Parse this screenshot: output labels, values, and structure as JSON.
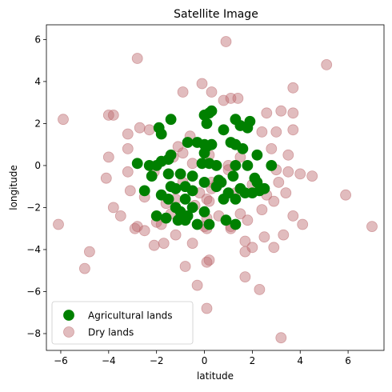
{
  "chart_data": {
    "type": "scatter",
    "title": "Satellite Image",
    "xlabel": "latitude",
    "ylabel": "longitude",
    "xlim": [
      -6.6,
      7.5
    ],
    "ylim": [
      -8.8,
      6.7
    ],
    "xticks": [
      -6,
      -4,
      -2,
      0,
      2,
      4,
      6
    ],
    "yticks": [
      -8,
      -6,
      -4,
      -2,
      0,
      2,
      4,
      6
    ],
    "legend_position": "lower-left",
    "series": [
      {
        "name": "Agricultural lands",
        "color": "#008000",
        "alpha": 1.0,
        "points": [
          [
            -1.4,
            2.2
          ],
          [
            -1.9,
            1.8
          ],
          [
            -1.8,
            1.5
          ],
          [
            0.0,
            2.4
          ],
          [
            0.3,
            2.6
          ],
          [
            0.2,
            2.5
          ],
          [
            1.3,
            2.2
          ],
          [
            1.5,
            1.9
          ],
          [
            1.9,
            2.1
          ],
          [
            1.8,
            1.8
          ],
          [
            0.8,
            1.7
          ],
          [
            0.1,
            2.0
          ],
          [
            -0.3,
            1.1
          ],
          [
            -0.7,
            1.1
          ],
          [
            0.3,
            1.0
          ],
          [
            0.0,
            1.0
          ],
          [
            0.1,
            0.9
          ],
          [
            1.3,
            1.0
          ],
          [
            1.1,
            1.1
          ],
          [
            1.6,
            0.8
          ],
          [
            2.2,
            0.5
          ],
          [
            -1.4,
            0.5
          ],
          [
            -1.5,
            0.3
          ],
          [
            0.0,
            0.6
          ],
          [
            -2.8,
            0.1
          ],
          [
            -2.3,
            0.0
          ],
          [
            -2.0,
            0.0
          ],
          [
            -1.8,
            0.2
          ],
          [
            -0.1,
            0.1
          ],
          [
            0.2,
            0.1
          ],
          [
            0.5,
            0.0
          ],
          [
            1.3,
            0.0
          ],
          [
            1.8,
            0.0
          ],
          [
            2.8,
            0.0
          ],
          [
            -2.2,
            -0.5
          ],
          [
            -1.5,
            -0.4
          ],
          [
            -1.0,
            -0.4
          ],
          [
            -0.5,
            -0.5
          ],
          [
            0.0,
            -0.8
          ],
          [
            0.6,
            -0.7
          ],
          [
            1.2,
            -0.5
          ],
          [
            2.1,
            -0.6
          ],
          [
            -1.8,
            -1.4
          ],
          [
            -1.4,
            -1.0
          ],
          [
            -1.2,
            -1.1
          ],
          [
            -0.8,
            -1.0
          ],
          [
            -0.5,
            -1.2
          ],
          [
            0.7,
            -0.8
          ],
          [
            1.0,
            -1.3
          ],
          [
            1.5,
            -1.1
          ],
          [
            2.2,
            -0.8
          ],
          [
            2.5,
            -1.1
          ],
          [
            -1.5,
            -1.6
          ],
          [
            -1.2,
            -2.0
          ],
          [
            -0.8,
            -1.6
          ],
          [
            -0.5,
            -2.0
          ],
          [
            0.8,
            -1.6
          ],
          [
            1.3,
            -1.6
          ],
          [
            2.0,
            -1.3
          ],
          [
            2.3,
            -1.2
          ],
          [
            -2.0,
            -2.4
          ],
          [
            -1.6,
            -2.5
          ],
          [
            -1.1,
            -2.6
          ],
          [
            -0.8,
            -2.6
          ],
          [
            0.0,
            -2.2
          ],
          [
            0.2,
            -2.8
          ],
          [
            0.9,
            -2.6
          ],
          [
            1.3,
            -2.8
          ],
          [
            -0.3,
            -2.8
          ],
          [
            -0.7,
            -2.4
          ],
          [
            -1.0,
            -2.2
          ],
          [
            0.5,
            -1.0
          ],
          [
            -2.5,
            -1.2
          ],
          [
            1.7,
            -1.3
          ]
        ]
      },
      {
        "name": "Dry lands",
        "color": "#bc6a6e",
        "alpha": 0.45,
        "points": [
          [
            -2.8,
            5.1
          ],
          [
            0.9,
            5.9
          ],
          [
            5.1,
            4.8
          ],
          [
            3.7,
            3.7
          ],
          [
            -0.9,
            3.5
          ],
          [
            -0.1,
            3.9
          ],
          [
            0.3,
            3.5
          ],
          [
            0.8,
            3.1
          ],
          [
            1.1,
            3.2
          ],
          [
            1.4,
            3.2
          ],
          [
            2.6,
            2.5
          ],
          [
            3.2,
            2.6
          ],
          [
            3.7,
            2.5
          ],
          [
            -5.9,
            2.2
          ],
          [
            -4.0,
            2.4
          ],
          [
            -3.8,
            2.4
          ],
          [
            -3.2,
            1.5
          ],
          [
            -2.7,
            1.8
          ],
          [
            -2.3,
            1.7
          ],
          [
            -0.6,
            1.4
          ],
          [
            2.4,
            1.6
          ],
          [
            3.0,
            1.6
          ],
          [
            3.7,
            1.7
          ],
          [
            -3.2,
            0.8
          ],
          [
            -1.1,
            0.9
          ],
          [
            2.8,
            0.8
          ],
          [
            -4.0,
            0.4
          ],
          [
            -1.3,
            0.4
          ],
          [
            -0.9,
            0.6
          ],
          [
            0.2,
            0.5
          ],
          [
            3.5,
            0.5
          ],
          [
            -0.5,
            0.1
          ],
          [
            1.0,
            0.0
          ],
          [
            1.5,
            0.4
          ],
          [
            -3.2,
            -0.3
          ],
          [
            -2.1,
            -0.3
          ],
          [
            1.0,
            -0.2
          ],
          [
            3.0,
            -0.2
          ],
          [
            3.5,
            -0.3
          ],
          [
            4.0,
            -0.4
          ],
          [
            4.5,
            -0.5
          ],
          [
            -4.1,
            -0.6
          ],
          [
            -0.9,
            -0.8
          ],
          [
            0.3,
            -0.8
          ],
          [
            2.0,
            -0.9
          ],
          [
            3.1,
            -0.8
          ],
          [
            -3.1,
            -1.2
          ],
          [
            -2.5,
            -1.5
          ],
          [
            -0.2,
            -1.3
          ],
          [
            0.1,
            -1.6
          ],
          [
            0.3,
            -1.1
          ],
          [
            1.3,
            -1.3
          ],
          [
            2.6,
            -1.4
          ],
          [
            3.4,
            -1.3
          ],
          [
            5.9,
            -1.4
          ],
          [
            -3.8,
            -2.0
          ],
          [
            -1.6,
            -1.8
          ],
          [
            -1.2,
            -1.6
          ],
          [
            -0.4,
            -1.9
          ],
          [
            0.2,
            -1.7
          ],
          [
            2.9,
            -1.7
          ],
          [
            -3.5,
            -2.4
          ],
          [
            -2.0,
            -2.7
          ],
          [
            -1.4,
            -2.3
          ],
          [
            0.1,
            -2.5
          ],
          [
            0.6,
            -2.4
          ],
          [
            1.5,
            -2.3
          ],
          [
            2.4,
            -2.1
          ],
          [
            4.1,
            -2.8
          ],
          [
            -2.8,
            -2.9
          ],
          [
            -2.5,
            -3.1
          ],
          [
            -1.8,
            -2.8
          ],
          [
            0.0,
            -2.9
          ],
          [
            1.1,
            -2.9
          ],
          [
            1.8,
            -2.6
          ],
          [
            3.7,
            -2.4
          ],
          [
            -2.9,
            -3.0
          ],
          [
            -2.1,
            -3.8
          ],
          [
            -1.7,
            -3.7
          ],
          [
            -1.2,
            -3.3
          ],
          [
            0.1,
            -3.0
          ],
          [
            1.1,
            -3.0
          ],
          [
            2.0,
            -3.9
          ],
          [
            2.5,
            -3.4
          ],
          [
            3.3,
            -3.3
          ],
          [
            2.9,
            -3.9
          ],
          [
            7.0,
            -2.9
          ],
          [
            -6.1,
            -2.8
          ],
          [
            -4.8,
            -4.1
          ],
          [
            -5.0,
            -4.9
          ],
          [
            -0.5,
            -3.7
          ],
          [
            0.2,
            -4.5
          ],
          [
            0.1,
            -4.6
          ],
          [
            -0.8,
            -4.8
          ],
          [
            1.7,
            -3.6
          ],
          [
            1.7,
            -4.1
          ],
          [
            -0.3,
            -5.7
          ],
          [
            1.7,
            -5.3
          ],
          [
            2.3,
            -5.9
          ],
          [
            0.1,
            -6.8
          ],
          [
            3.2,
            -8.2
          ],
          [
            0.5,
            -0.9
          ]
        ]
      }
    ]
  }
}
